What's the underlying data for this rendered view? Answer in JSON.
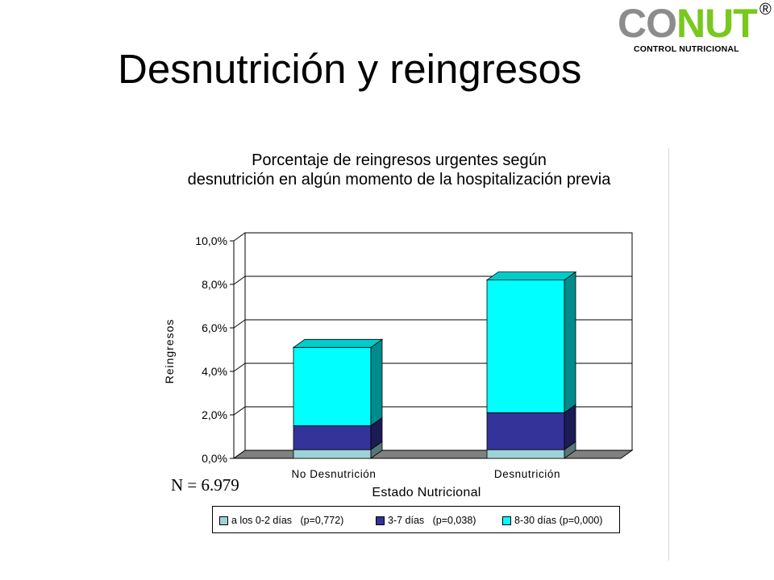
{
  "slide": {
    "title": "Desnutrición y reingresos"
  },
  "logo": {
    "word_part1": "CO",
    "word_part2": "NUT",
    "registered": "®",
    "subtitle": "CONTROL NUTRICIONAL"
  },
  "note": {
    "sample_size": "N = 6.979"
  },
  "colors": {
    "series_0_2_dias": "#9fd2d6",
    "series_3_7_dias": "#333399",
    "series_8_30_dias": "#00ffff",
    "floor": "#808080",
    "logo_co": "#8c8c8c",
    "logo_nut": "#78c81e"
  },
  "chart_data": {
    "type": "bar",
    "stacked": true,
    "three_d": true,
    "title": "Porcentaje de reingresos urgentes según desnutrición en algún momento de la hospitalización previa",
    "title_lines": [
      "Porcentaje de reingresos urgentes según",
      "desnutrición en algún momento de la hospitalización previa"
    ],
    "xlabel": "Estado Nutricional",
    "ylabel": "Reingresos",
    "ylim": [
      0,
      10
    ],
    "yticks": [
      0,
      2,
      4,
      6,
      8,
      10
    ],
    "ytick_labels": [
      "0,0%",
      "2,0%",
      "4,0%",
      "6,0%",
      "8,0%",
      "10,0%"
    ],
    "grid": true,
    "legend_position": "bottom",
    "categories": [
      "No Desnutrición",
      "Desnutrición"
    ],
    "series": [
      {
        "name": "a los 0-2 días   (p=0,772)",
        "values": [
          0.4,
          0.4
        ]
      },
      {
        "name": "3-7 días   (p=0,038)",
        "values": [
          1.1,
          1.7
        ]
      },
      {
        "name": "8-30 días (p=0,000)",
        "values": [
          3.6,
          6.1
        ]
      }
    ]
  }
}
